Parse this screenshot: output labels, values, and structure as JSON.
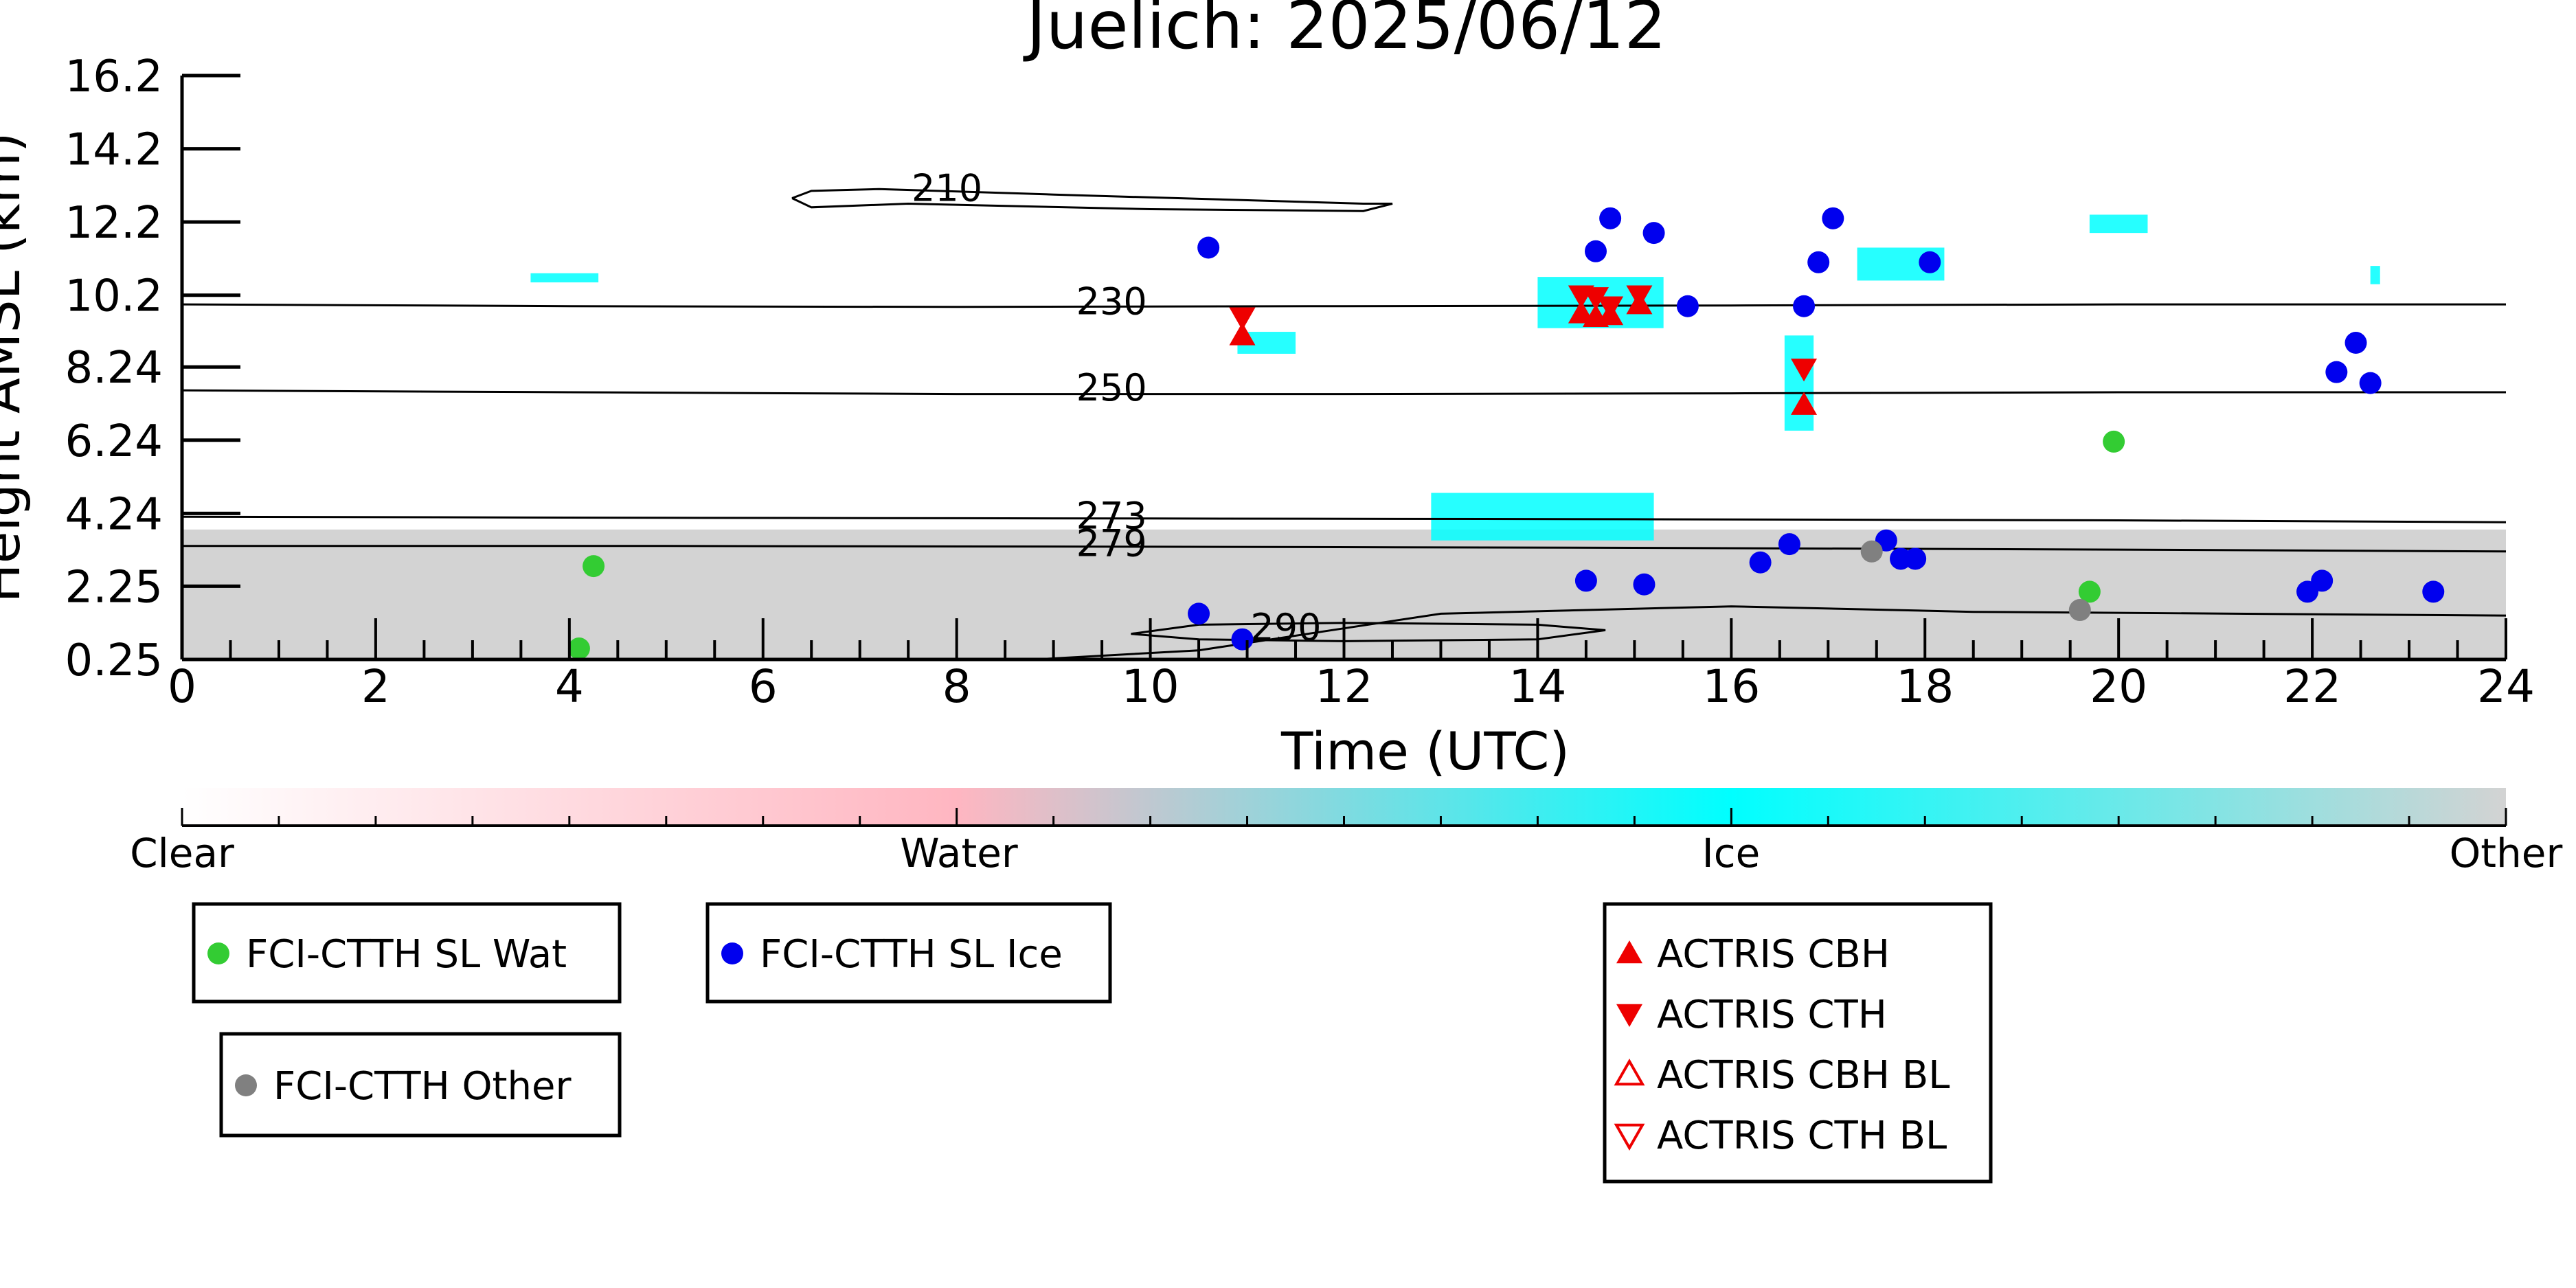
{
  "chart_data": {
    "type": "scatter",
    "title": "Juelich: 2025/06/12",
    "xlabel": "Time (UTC)",
    "ylabel": "Height AMSL (km)",
    "xlim": [
      0,
      24
    ],
    "ylim": [
      0.25,
      16.2
    ],
    "x_ticks": [
      0,
      2,
      4,
      6,
      8,
      10,
      12,
      14,
      16,
      18,
      20,
      22,
      24
    ],
    "y_ticks": [
      "0.25",
      "2.25",
      "4.24",
      "6.24",
      "8.24",
      "10.2",
      "12.2",
      "14.2",
      "16.2"
    ],
    "colorbar": {
      "labels": [
        "Clear",
        "Water",
        "Ice",
        "Other"
      ],
      "colors": [
        "#ffffff",
        "#ffb6c1",
        "#00ffff",
        "#d3d3d3"
      ]
    },
    "contours": [
      {
        "label": "210",
        "label_x": 7.9,
        "label_y": 13.0,
        "points": [
          [
            6.3,
            12.85
          ],
          [
            6.5,
            13.05
          ],
          [
            7.2,
            13.1
          ],
          [
            9.0,
            12.95
          ],
          [
            12.2,
            12.7
          ],
          [
            12.5,
            12.7
          ],
          [
            12.2,
            12.5
          ],
          [
            10.0,
            12.55
          ],
          [
            7.5,
            12.7
          ],
          [
            6.5,
            12.6
          ],
          [
            6.3,
            12.85
          ]
        ]
      },
      {
        "label": "230",
        "label_x": 9.6,
        "label_y": 9.9,
        "points": [
          [
            0,
            9.95
          ],
          [
            4,
            9.9
          ],
          [
            8,
            9.88
          ],
          [
            12,
            9.9
          ],
          [
            16,
            9.92
          ],
          [
            20,
            9.95
          ],
          [
            24,
            9.95
          ]
        ]
      },
      {
        "label": "250",
        "label_x": 9.6,
        "label_y": 7.55,
        "points": [
          [
            0,
            7.6
          ],
          [
            4,
            7.55
          ],
          [
            8,
            7.5
          ],
          [
            12,
            7.5
          ],
          [
            16,
            7.52
          ],
          [
            20,
            7.55
          ],
          [
            24,
            7.55
          ]
        ]
      },
      {
        "label": "273",
        "label_x": 9.6,
        "label_y": 4.05,
        "points": [
          [
            0,
            4.15
          ],
          [
            5,
            4.12
          ],
          [
            10,
            4.1
          ],
          [
            15,
            4.08
          ],
          [
            20,
            4.05
          ],
          [
            24,
            4.0
          ]
        ]
      },
      {
        "label": "279",
        "label_x": 9.6,
        "label_y": 3.3,
        "points": [
          [
            0,
            3.35
          ],
          [
            5,
            3.35
          ],
          [
            10,
            3.33
          ],
          [
            15,
            3.3
          ],
          [
            20,
            3.25
          ],
          [
            24,
            3.2
          ]
        ]
      },
      {
        "label": "290",
        "label_x": 11.4,
        "label_y": 1.0,
        "points": [
          [
            8.8,
            0.25
          ],
          [
            10.5,
            0.5
          ],
          [
            12.0,
            1.1
          ],
          [
            13.0,
            1.5
          ],
          [
            16.0,
            1.7
          ],
          [
            18.5,
            1.55
          ],
          [
            24,
            1.45
          ]
        ]
      },
      {
        "label": "",
        "label_x": 0,
        "label_y": 0,
        "points": [
          [
            9.8,
            0.95
          ],
          [
            10.5,
            1.2
          ],
          [
            12.0,
            1.25
          ],
          [
            14.0,
            1.2
          ],
          [
            14.7,
            1.05
          ],
          [
            14.0,
            0.8
          ],
          [
            12.0,
            0.75
          ],
          [
            10.5,
            0.8
          ],
          [
            9.8,
            0.95
          ]
        ]
      }
    ],
    "cloud_regions": [
      {
        "class": "Other",
        "x": [
          0,
          24
        ],
        "y": [
          0.25,
          3.8
        ]
      },
      {
        "class": "Ice",
        "x": [
          14.0,
          15.3
        ],
        "y": [
          9.3,
          10.7
        ]
      },
      {
        "class": "Ice",
        "x": [
          10.9,
          11.5
        ],
        "y": [
          8.6,
          9.2
        ]
      },
      {
        "class": "Ice",
        "x": [
          16.55,
          16.85
        ],
        "y": [
          6.5,
          9.1
        ]
      },
      {
        "class": "Ice",
        "x": [
          17.3,
          18.2
        ],
        "y": [
          10.6,
          11.5
        ]
      },
      {
        "class": "Ice",
        "x": [
          19.7,
          20.3
        ],
        "y": [
          11.9,
          12.4
        ]
      },
      {
        "class": "Ice",
        "x": [
          12.9,
          15.2
        ],
        "y": [
          3.5,
          4.8
        ]
      },
      {
        "class": "Ice",
        "x": [
          3.6,
          4.3
        ],
        "y": [
          10.55,
          10.8
        ]
      },
      {
        "class": "Ice",
        "x": [
          22.6,
          22.7
        ],
        "y": [
          10.5,
          11.0
        ]
      }
    ],
    "series": [
      {
        "name": "FCI-CTTH SL Wat",
        "color": "#33cc33",
        "marker": "circle",
        "x": [
          4.1,
          4.25,
          19.7,
          19.95
        ],
        "y": [
          0.55,
          2.8,
          2.1,
          6.2
        ]
      },
      {
        "name": "FCI-CTTH SL Ice",
        "color": "#0000ee",
        "marker": "circle",
        "x": [
          10.5,
          10.95,
          10.6,
          14.5,
          14.6,
          14.75,
          15.1,
          15.55,
          15.2,
          16.3,
          16.6,
          16.75,
          16.9,
          17.05,
          17.6,
          17.75,
          17.9,
          18.05,
          21.95,
          22.1,
          22.25,
          22.45,
          22.6,
          23.25
        ],
        "y": [
          1.5,
          0.8,
          11.5,
          2.4,
          11.4,
          12.3,
          2.3,
          9.9,
          11.9,
          2.9,
          3.4,
          9.9,
          11.1,
          12.3,
          3.5,
          3.0,
          3.0,
          11.1,
          2.1,
          2.4,
          8.1,
          8.9,
          7.8,
          2.1
        ]
      },
      {
        "name": "FCI-CTTH Other",
        "color": "#808080",
        "marker": "circle",
        "x": [
          17.45,
          19.6
        ],
        "y": [
          3.2,
          1.6
        ]
      },
      {
        "name": "ACTRIS CBH",
        "color": "#ee0000",
        "marker": "triangle-up",
        "x": [
          10.95,
          14.45,
          14.6,
          14.75,
          15.05,
          16.75
        ],
        "y": [
          9.1,
          9.7,
          9.6,
          9.65,
          9.95,
          7.2
        ]
      },
      {
        "name": "ACTRIS CTH",
        "color": "#ee0000",
        "marker": "triangle-down",
        "x": [
          10.95,
          14.45,
          14.6,
          14.75,
          15.05,
          16.75
        ],
        "y": [
          9.6,
          10.2,
          10.15,
          9.9,
          10.2,
          8.2
        ]
      },
      {
        "name": "ACTRIS CBH BL",
        "color": "#ee0000",
        "marker": "triangle-up-open",
        "x": [],
        "y": []
      },
      {
        "name": "ACTRIS CTH BL",
        "color": "#ee0000",
        "marker": "triangle-down-open",
        "x": [],
        "y": []
      }
    ]
  }
}
